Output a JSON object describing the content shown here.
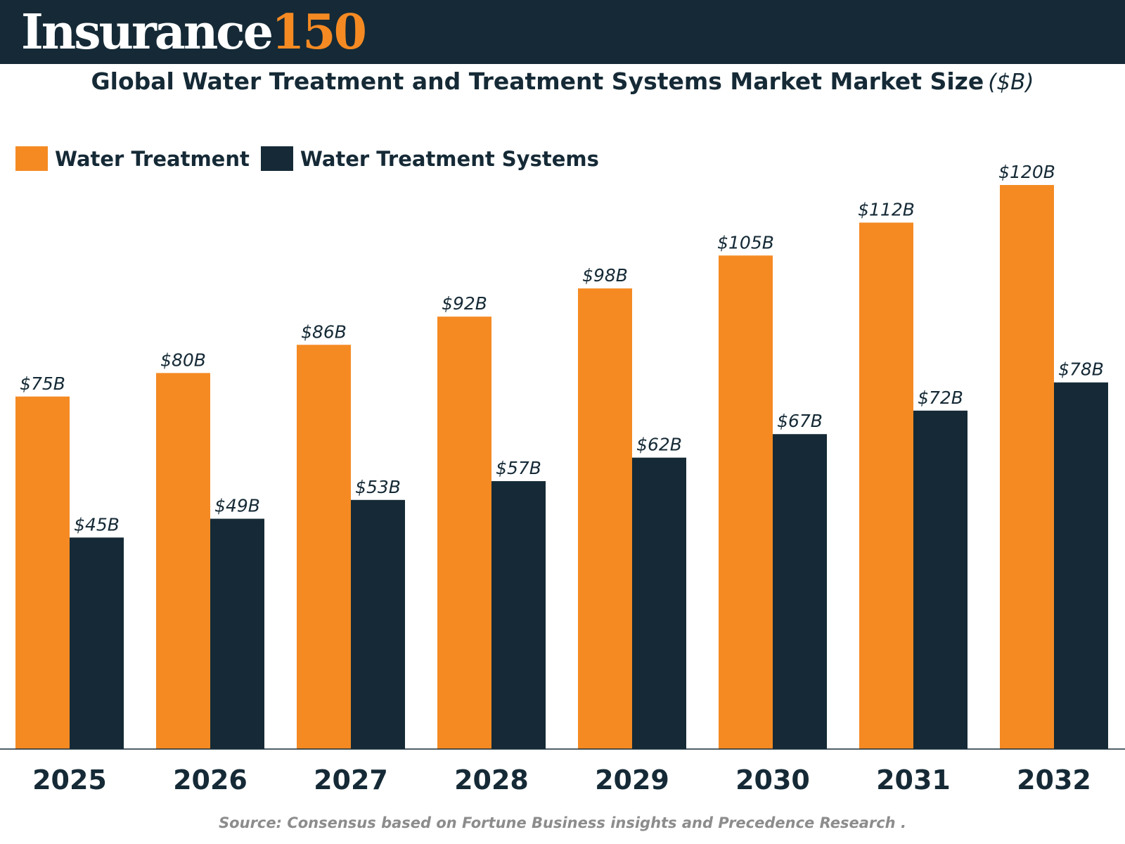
{
  "brand": {
    "name": "Insurance",
    "number": "150"
  },
  "colors": {
    "header_bg": "#152a36",
    "accent": "#f58a23",
    "series_dark": "#152a36"
  },
  "title": {
    "main": "Global Water Treatment and Treatment Systems Market Market Size",
    "unit": "($B)"
  },
  "source": "Source: Consensus based on Fortune Business insights and Precedence Research .",
  "chart_data": {
    "type": "bar",
    "categories": [
      "2025",
      "2026",
      "2027",
      "2028",
      "2029",
      "2030",
      "2031",
      "2032"
    ],
    "series": [
      {
        "name": "Water Treatment",
        "color": "#f58a23",
        "values": [
          75,
          80,
          86,
          92,
          98,
          105,
          112,
          120
        ],
        "labels": [
          "$75B",
          "$80B",
          "$86B",
          "$92B",
          "$98B",
          "$105B",
          "$112B",
          "$120B"
        ]
      },
      {
        "name": "Water Treatment Systems",
        "color": "#152a36",
        "values": [
          45,
          49,
          53,
          57,
          62,
          67,
          72,
          78
        ],
        "labels": [
          "$45B",
          "$49B",
          "$53B",
          "$57B",
          "$62B",
          "$67B",
          "$72B",
          "$78B"
        ]
      }
    ],
    "ylim": [
      0,
      120
    ],
    "grid": false,
    "legend_position": "top-left"
  }
}
